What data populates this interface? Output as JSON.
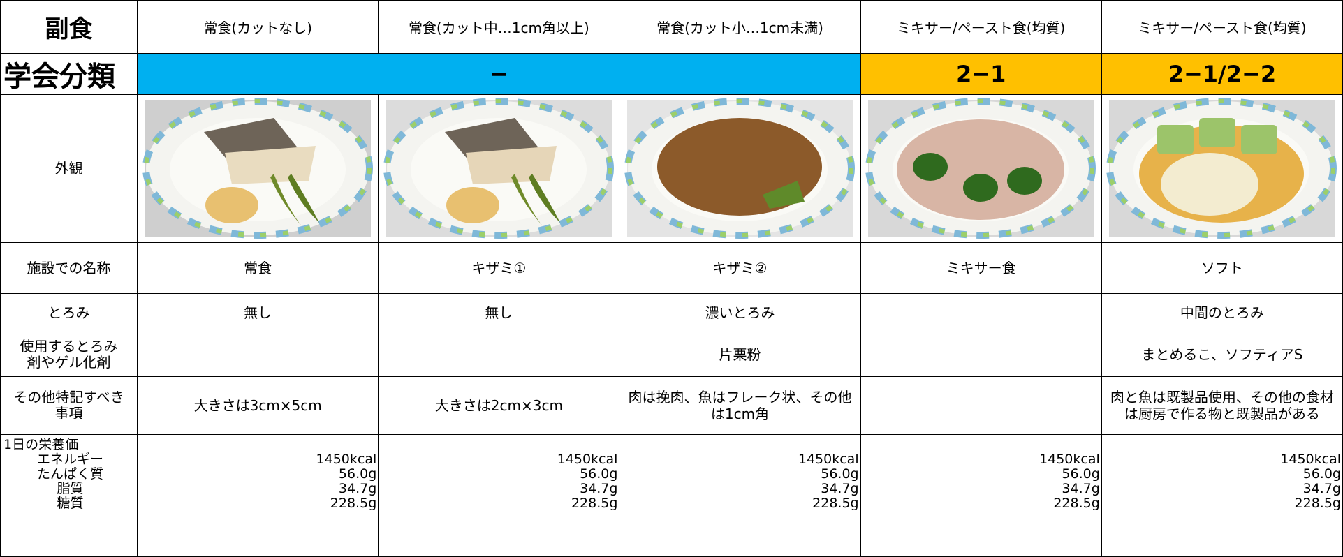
{
  "header": {
    "label": "副食",
    "columns": [
      "常食(カットなし)",
      "常食(カット中…1cm角以上)",
      "常食(カット小…1cm未満)",
      "ミキサー/ペースト食(均質)",
      "ミキサー/ペースト食(均質)"
    ]
  },
  "classification": {
    "label": "学会分類",
    "groups": [
      "−",
      "2−1",
      "2−1/2−2"
    ]
  },
  "appearance": {
    "label": "外観"
  },
  "rows": [
    {
      "label": "施設での名称",
      "cells": [
        "常食",
        "キザミ①",
        "キザミ②",
        "ミキサー食",
        "ソフト"
      ]
    },
    {
      "label": "とろみ",
      "cells": [
        "無し",
        "無し",
        "濃いとろみ",
        null,
        "中間のとろみ"
      ]
    },
    {
      "label": "使用するとろみ剤やゲル化剤",
      "cells": [
        null,
        null,
        "片栗粉",
        null,
        "まとめるこ、ソフティアS"
      ]
    },
    {
      "label": "その他特記すべき事項",
      "cells": [
        "大きさは3cm×5cm",
        "大きさは2cm×3cm",
        "肉は挽肉、魚はフレーク状、その他は1cm角",
        null,
        "肉と魚は既製品使用、その他の食材は厨房で作る物と既製品がある"
      ]
    }
  ],
  "nutrition": {
    "title": "1日の栄養価",
    "items": [
      "エネルギー",
      "たんぱく質",
      "脂質",
      "糖質"
    ],
    "values": [
      [
        "1450kcal",
        "56.0g",
        "34.7g",
        "228.5g"
      ],
      [
        "1450kcal",
        "56.0g",
        "34.7g",
        "228.5g"
      ],
      [
        "1450kcal",
        "56.0g",
        "34.7g",
        "228.5g"
      ],
      [
        "1450kcal",
        "56.0g",
        "34.7g",
        "228.5g"
      ],
      [
        "1450kcal",
        "56.0g",
        "34.7g",
        "228.5g"
      ]
    ]
  }
}
